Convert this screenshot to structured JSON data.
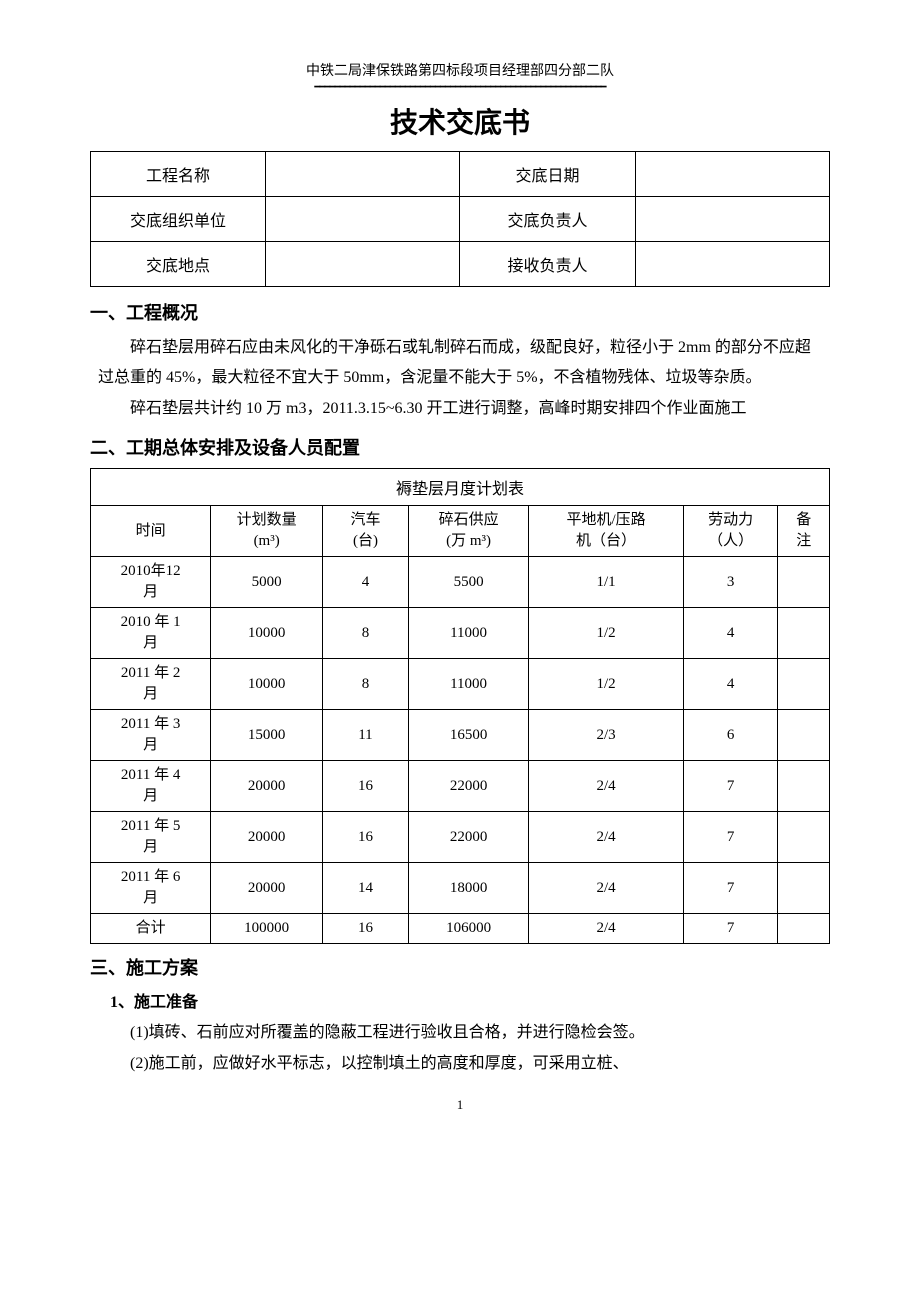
{
  "header": {
    "org": "中铁二局津保铁路第四标段项目经理部四分部二队",
    "divider": "━━━━━━━━━━━━━━━━━━━━━━━━━━━━━━━━━━━━━━━━━━━━━━━━━━━━━━━━━━"
  },
  "title": "技术交底书",
  "info": {
    "r1c1_label": "工程名称",
    "r1c1_value": "",
    "r1c2_label": "交底日期",
    "r1c2_value": "",
    "r2c1_label": "交底组织单位",
    "r2c1_value": "",
    "r2c2_label": "交底负责人",
    "r2c2_value": "",
    "r3c1_label": "交底地点",
    "r3c1_value": "",
    "r3c2_label": "接收负责人",
    "r3c2_value": ""
  },
  "sections": {
    "s1_title": "一、工程概况",
    "s1_p1": "碎石垫层用碎石应由未风化的干净砾石或轧制碎石而成，级配良好，粒径小于 2mm 的部分不应超过总重的 45%，最大粒径不宜大于 50mm，含泥量不能大于 5%，不含植物残体、垃圾等杂质。",
    "s1_p2": "碎石垫层共计约 10 万 m3，2011.3.15~6.30 开工进行调整，高峰时期安排四个作业面施工",
    "s2_title": "二、工期总体安排及设备人员配置",
    "s3_title": "三、施工方案",
    "s3_sub1": "1、施工准备",
    "s3_p1": "(1)填砖、石前应对所覆盖的隐蔽工程进行验收且合格，并进行隐检会签。",
    "s3_p2": "(2)施工前，应做好水平标志，以控制填土的高度和厚度，可采用立桩、"
  },
  "plan": {
    "caption": "褥垫层月度计划表",
    "columns": [
      "时间",
      "计划数量\n(m³)",
      "汽车\n(台)",
      "碎石供应\n(万 m³)",
      "平地机/压路\n机（台）",
      "劳动力\n（人）",
      "备\n注"
    ],
    "rows": [
      [
        "2010年12\n月",
        "5000",
        "4",
        "5500",
        "1/1",
        "3",
        ""
      ],
      [
        "2010 年 1\n月",
        "10000",
        "8",
        "11000",
        "1/2",
        "4",
        ""
      ],
      [
        "2011 年 2\n月",
        "10000",
        "8",
        "11000",
        "1/2",
        "4",
        ""
      ],
      [
        "2011 年 3\n月",
        "15000",
        "11",
        "16500",
        "2/3",
        "6",
        ""
      ],
      [
        "2011 年 4\n月",
        "20000",
        "16",
        "22000",
        "2/4",
        "7",
        ""
      ],
      [
        "2011 年 5\n月",
        "20000",
        "16",
        "22000",
        "2/4",
        "7",
        ""
      ],
      [
        "2011 年 6\n月",
        "20000",
        "14",
        "18000",
        "2/4",
        "7",
        ""
      ],
      [
        "合计",
        "100000",
        "16",
        "106000",
        "2/4",
        "7",
        ""
      ]
    ]
  },
  "page_number": "1"
}
